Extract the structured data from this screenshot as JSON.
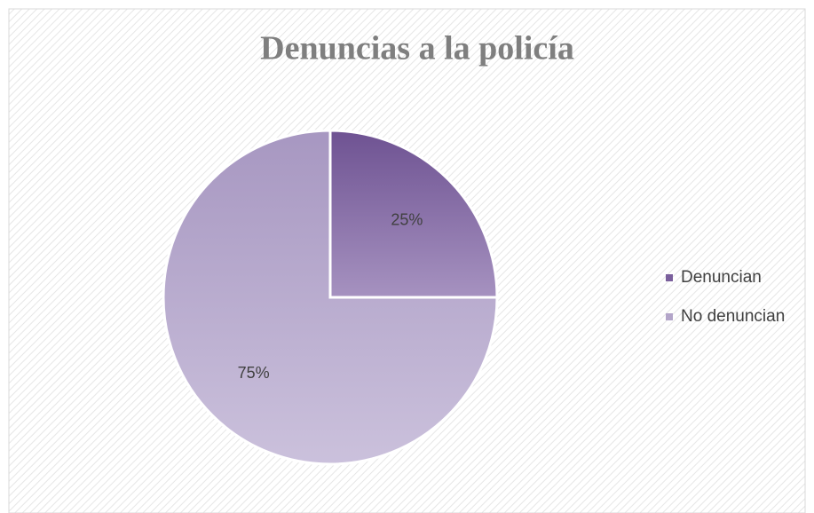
{
  "chart_data": {
    "type": "pie",
    "title": "Denuncias a la policía",
    "categories": [
      "Denuncian",
      "No denuncian"
    ],
    "values": [
      25,
      75
    ],
    "value_labels": [
      "25%",
      "75%"
    ],
    "colors": [
      "#7a5f9c",
      "#b3a5c9"
    ],
    "legend": "right"
  }
}
